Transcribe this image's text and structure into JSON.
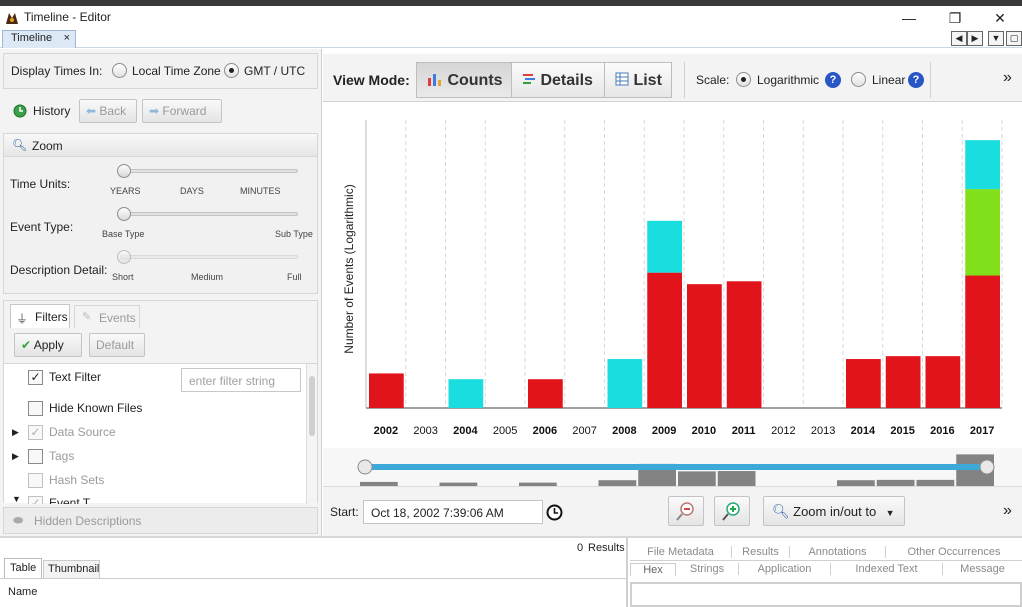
{
  "window": {
    "title": "Timeline - Editor",
    "min_glyph": "—",
    "max_glyph": "❐",
    "close_glyph": "✕"
  },
  "tabbar": {
    "tab_label": "Timeline",
    "close_glyph": "×",
    "nav_left": "◀",
    "nav_right": "▶",
    "nav_down": "▼",
    "nav_restore": "▢"
  },
  "left": {
    "display_times": {
      "label": "Display Times In:",
      "local": "Local Time Zone",
      "gmt": "GMT / UTC",
      "selected": "gmt"
    },
    "history": {
      "label": "History",
      "back": "Back",
      "forward": "Forward"
    },
    "zoom": {
      "header": "Zoom",
      "time_units": {
        "label": "Time Units:",
        "ticks": [
          "YEARS",
          "DAYS",
          "MINUTES"
        ]
      },
      "event_type": {
        "label": "Event Type:",
        "ticks": [
          "Base Type",
          "Sub Type"
        ]
      },
      "description_detail": {
        "label": "Description Detail:",
        "ticks": [
          "Short",
          "Medium",
          "Full"
        ]
      }
    },
    "filters": {
      "tab_filters": "Filters",
      "tab_events": "Events",
      "apply": "Apply",
      "default": "Default",
      "placeholder": "enter filter string",
      "items": [
        "Text Filter",
        "Hide Known Files",
        "Data Source",
        "Tags",
        "Hash Sets",
        "Event T..."
      ]
    },
    "hidden_descriptions": "Hidden Descriptions"
  },
  "toolbar": {
    "view_mode_label": "View Mode:",
    "counts": "Counts",
    "details": "Details",
    "list": "List",
    "scale_label": "Scale:",
    "logarithmic": "Logarithmic",
    "linear": "Linear",
    "help": "?",
    "more": "»"
  },
  "chart_data": {
    "type": "bar",
    "ylabel": "Number of Events (Logarithmic)",
    "scale": "logarithmic",
    "categories": [
      "2002",
      "2003",
      "2004",
      "2005",
      "2006",
      "2007",
      "2008",
      "2009",
      "2010",
      "2011",
      "2012",
      "2013",
      "2014",
      "2015",
      "2016",
      "2017"
    ],
    "bold_categories": [
      "2002",
      "2004",
      "2006",
      "2008",
      "2009",
      "2010",
      "2011",
      "2014",
      "2015",
      "2016",
      "2017"
    ],
    "series": [
      {
        "color": "#e2141b",
        "values": [
          0.12,
          0,
          0,
          0,
          0.1,
          0,
          0,
          0.47,
          0.43,
          0.44,
          0,
          0,
          0.17,
          0.18,
          0.18,
          0.46
        ]
      },
      {
        "color": "#82e01a",
        "values": [
          0,
          0,
          0,
          0,
          0,
          0,
          0,
          0,
          0,
          0,
          0,
          0,
          0,
          0,
          0,
          0.3
        ]
      },
      {
        "color": "#1adde0",
        "values": [
          0,
          0,
          0.1,
          0,
          0,
          0,
          0.17,
          0.18,
          0,
          0,
          0,
          0,
          0,
          0,
          0,
          0.17
        ]
      }
    ],
    "ylim": [
      0,
      1
    ],
    "grid": "vertical"
  },
  "bottom": {
    "start_label": "Start:",
    "start_value": "Oct 18, 2002 7:39:06 AM",
    "zoom_label": "Zoom in/out to",
    "more": "»"
  },
  "results": {
    "count": "0",
    "count_label": "Results",
    "table_tab": "Table",
    "thumbnail_tab": "Thumbnail",
    "name_col": "Name",
    "tabs_row1": [
      "File Metadata",
      "Results",
      "Annotations",
      "Other Occurrences"
    ],
    "tabs_row2": [
      "Hex",
      "Strings",
      "Application",
      "Indexed Text",
      "Message"
    ]
  },
  "colors": {
    "red": "#e2141b",
    "cyan": "#1adde0",
    "green": "#82e01a",
    "blue_track": "#3ca9d8"
  }
}
